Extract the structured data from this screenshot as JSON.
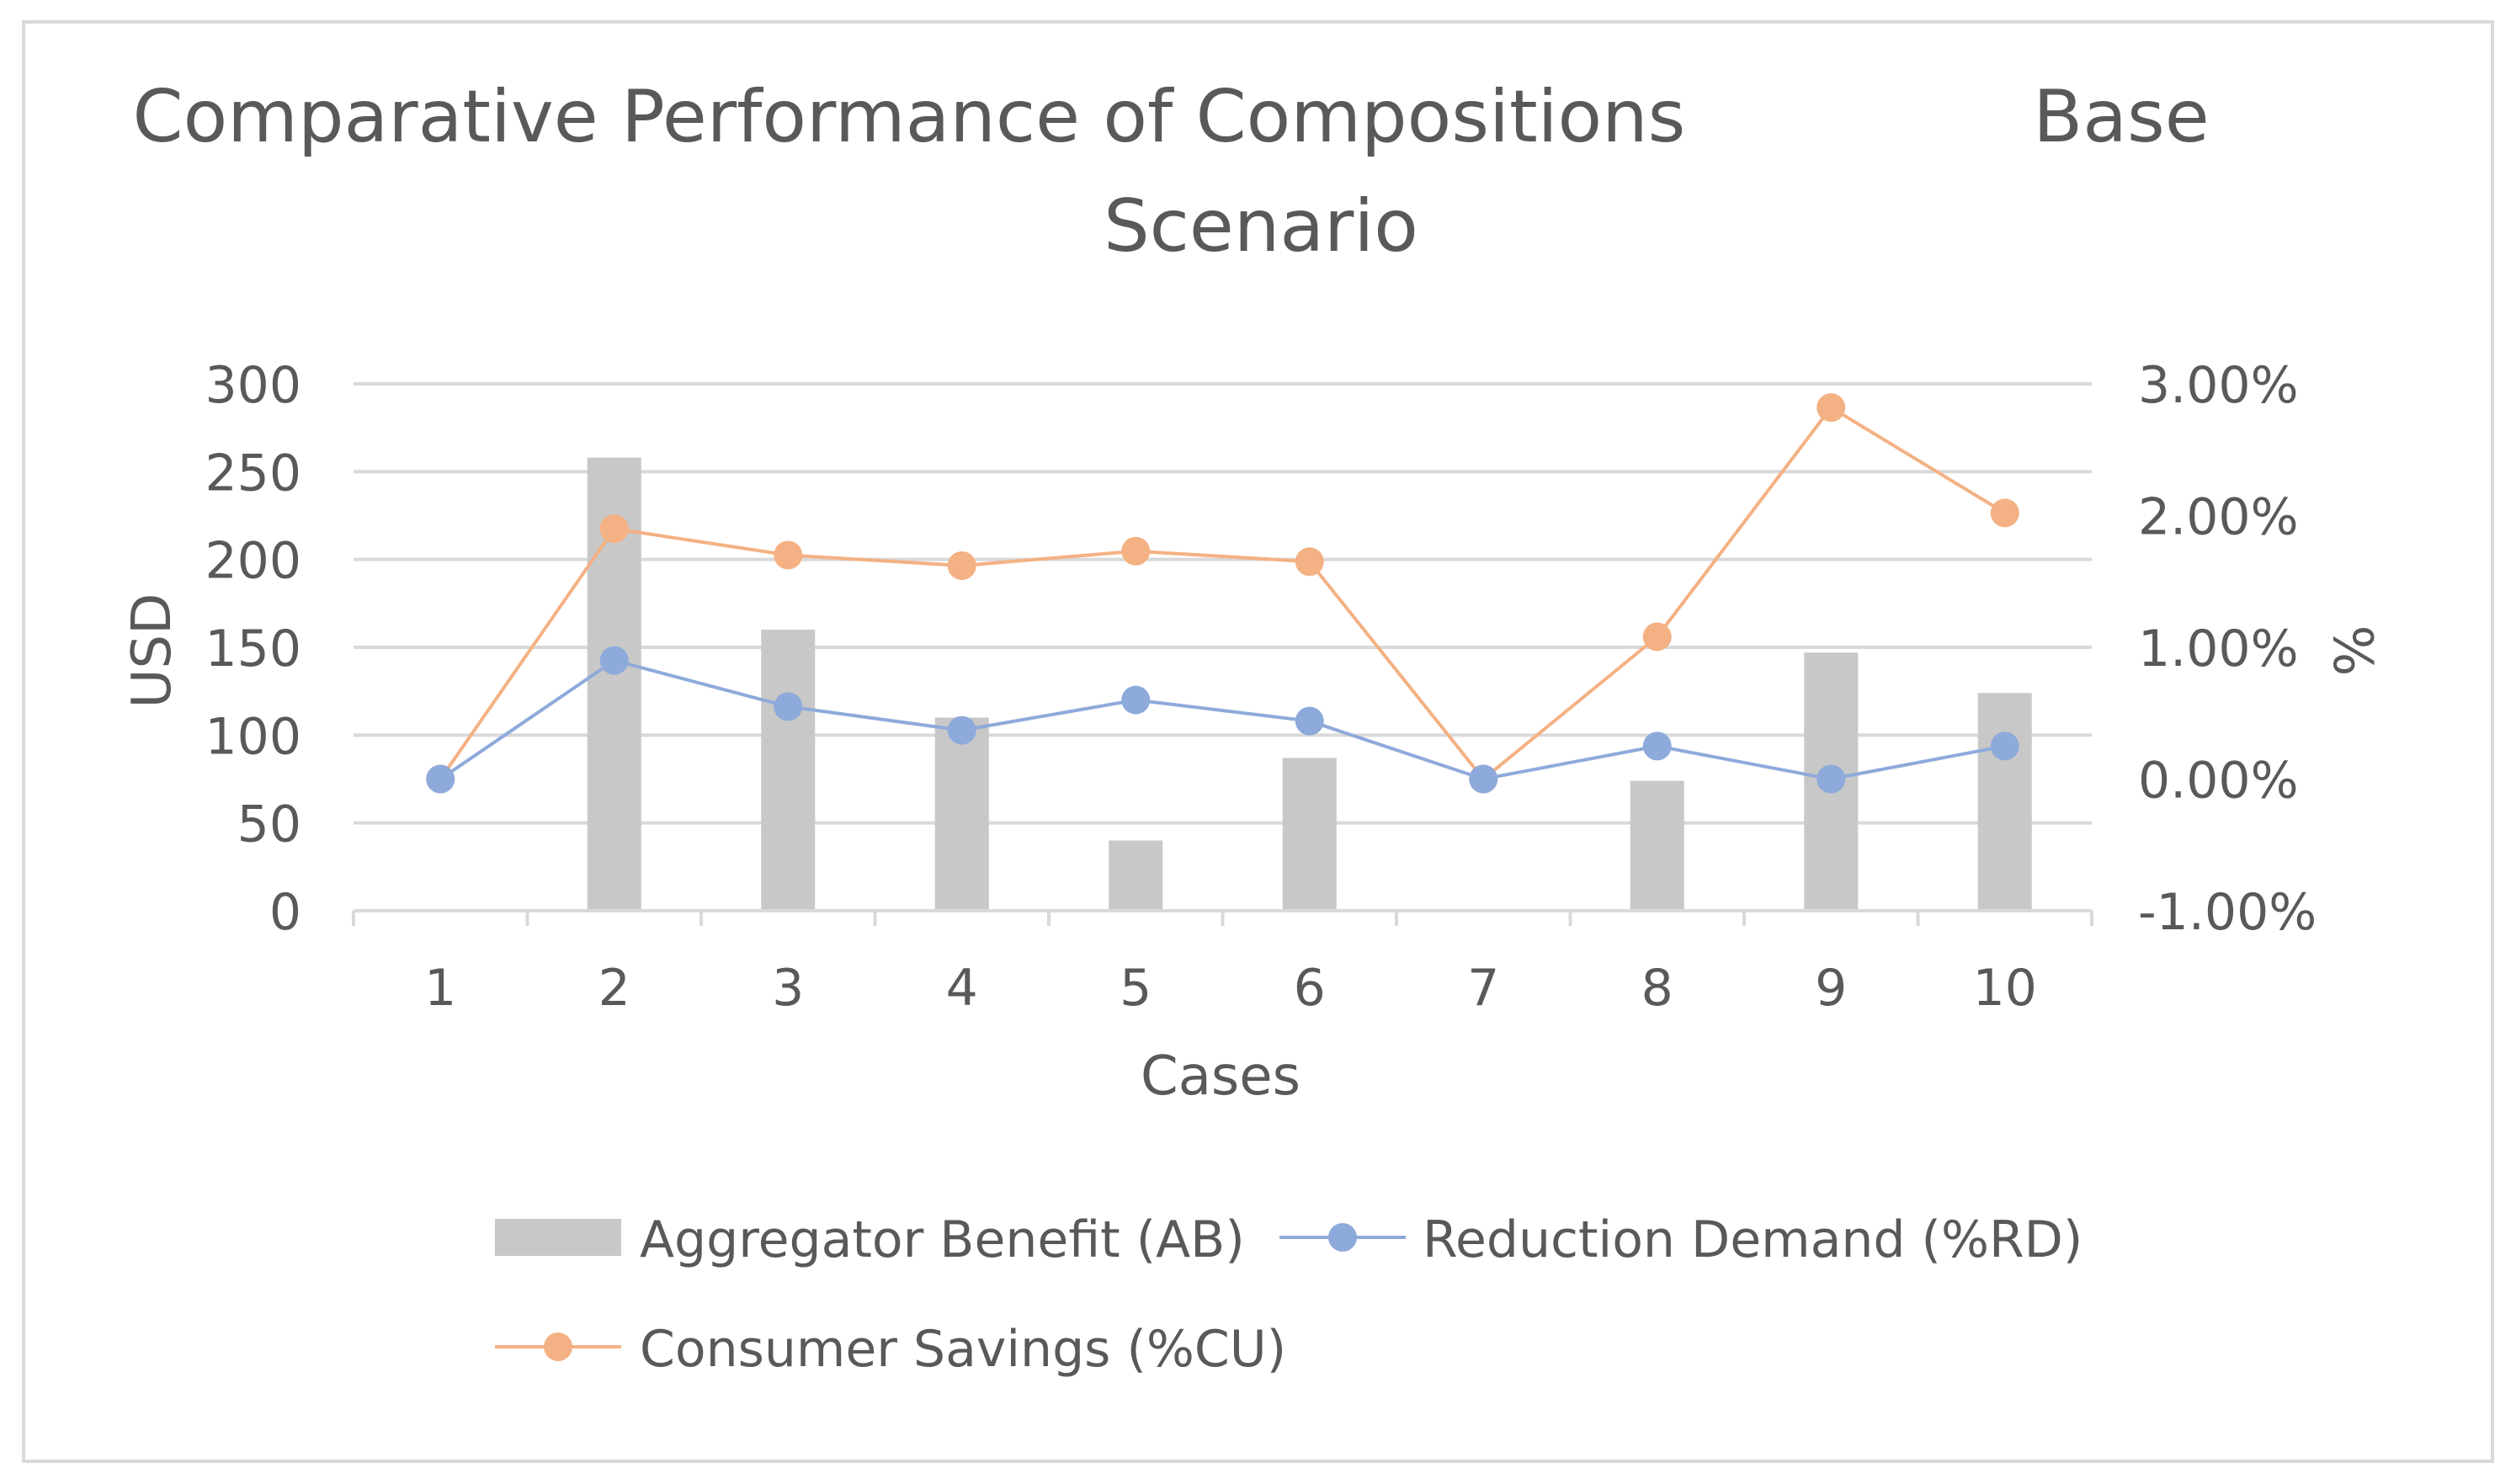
{
  "chart_data": {
    "type": "bar",
    "title_line1": "Comparative Performance of Compositions",
    "title_line1_suffix": "Base",
    "title_line2": "Scenario",
    "xlabel": "Cases",
    "ylabel": "USD",
    "y2label": "%",
    "categories": [
      "1",
      "2",
      "3",
      "4",
      "5",
      "6",
      "7",
      "8",
      "9",
      "10"
    ],
    "ylim": [
      0,
      300
    ],
    "yticks": [
      0,
      50,
      100,
      150,
      200,
      250,
      300
    ],
    "ytick_labels": [
      "0",
      "50",
      "100",
      "150",
      "200",
      "250",
      "300"
    ],
    "y2lim": [
      -1.0,
      3.0
    ],
    "y2ticks": [
      -1.0,
      0.0,
      1.0,
      2.0,
      3.0
    ],
    "y2tick_labels": [
      "-1.00%",
      "0.00%",
      "1.00%",
      "2.00%",
      "3.00%"
    ],
    "grid": true,
    "legend_position": "bottom",
    "series": [
      {
        "name": "Aggregator Benefit (AB)",
        "kind": "bar",
        "axis": "left",
        "color": "#c8c8c8",
        "values": [
          0,
          258,
          160,
          110,
          40,
          87,
          0,
          74,
          147,
          124
        ]
      },
      {
        "name": "Reduction Demand (%RD)",
        "kind": "line",
        "axis": "right",
        "color": "#8eaadb",
        "values": [
          0.0,
          0.9,
          0.55,
          0.37,
          0.6,
          0.44,
          0.0,
          0.25,
          0.0,
          0.25
        ]
      },
      {
        "name": "Consumer Savings (%CU)",
        "kind": "line",
        "axis": "right",
        "color": "#f4b183",
        "values": [
          0.0,
          1.9,
          1.7,
          1.62,
          1.73,
          1.65,
          0.0,
          1.08,
          2.82,
          2.02
        ]
      }
    ]
  }
}
